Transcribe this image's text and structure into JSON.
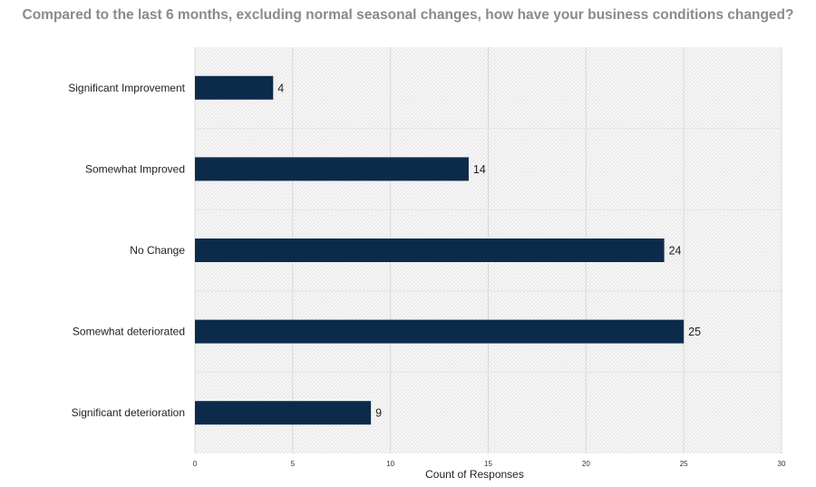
{
  "chart_data": {
    "type": "bar",
    "orientation": "horizontal",
    "title": "Compared to the last 6 months, excluding normal seasonal changes, how have your business conditions changed?",
    "categories": [
      "Significant Improvement",
      "Somewhat Improved",
      "No Change",
      "Somewhat deteriorated",
      "Significant deterioration"
    ],
    "values": [
      4,
      14,
      24,
      25,
      9
    ],
    "xlabel": "Count of Responses",
    "ylabel": "",
    "xlim": [
      0,
      30
    ],
    "xticks": [
      0,
      5,
      10,
      15,
      20,
      25,
      30
    ],
    "grid": true,
    "data_labels": true,
    "bar_color": "#0c2b4b"
  }
}
